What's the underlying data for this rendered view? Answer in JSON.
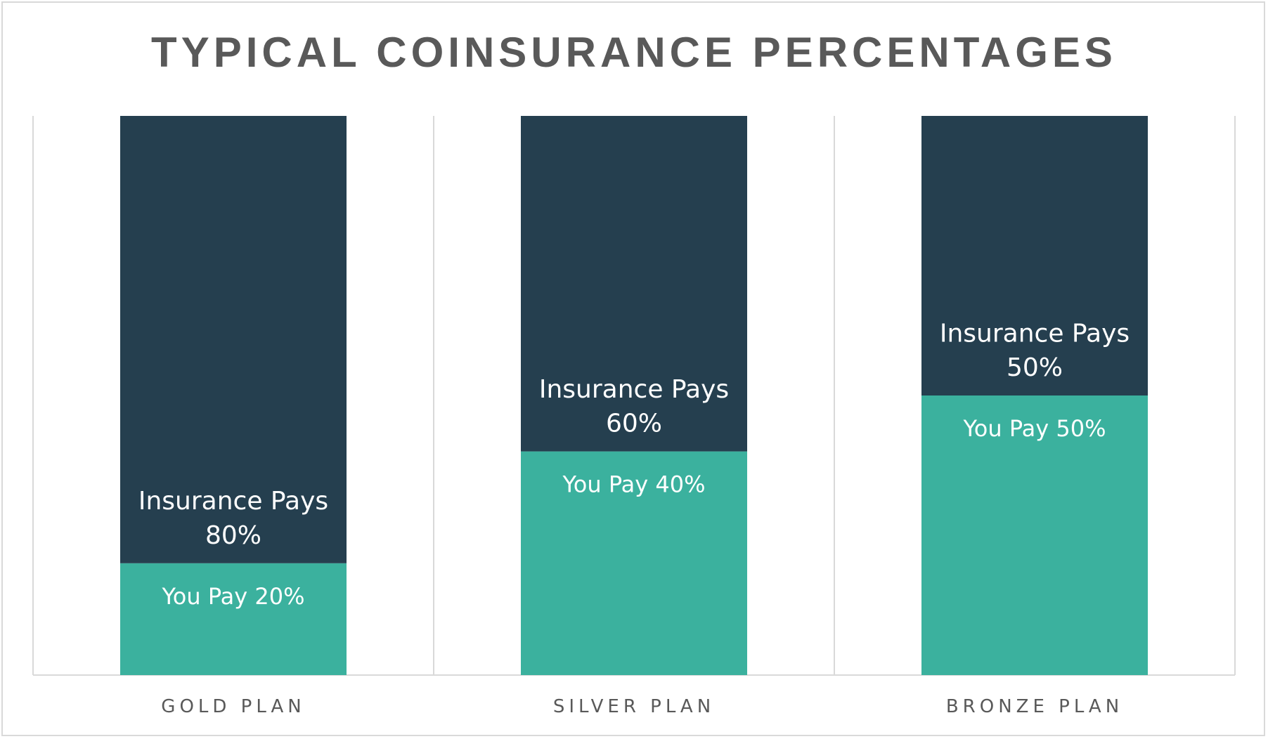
{
  "chart_data": {
    "type": "bar",
    "stacked": true,
    "title": "TYPICAL COINSURANCE PERCENTAGES",
    "categories": [
      "GOLD PLAN",
      "SILVER PLAN",
      "BRONZE PLAN"
    ],
    "ylim": [
      0,
      100
    ],
    "grid": false,
    "legend": "none",
    "series": [
      {
        "key": "you_pay",
        "values": [
          20,
          40,
          50
        ],
        "color": "#3bb19e",
        "labels": [
          "You Pay 20%",
          "You Pay 40%",
          "You Pay 50%"
        ]
      },
      {
        "key": "insurance_pays",
        "values": [
          80,
          60,
          50
        ],
        "color": "#253f4f",
        "labels": [
          [
            "Insurance Pays",
            "80%"
          ],
          [
            "Insurance Pays",
            "60%"
          ],
          [
            "Insurance Pays",
            "50%"
          ]
        ]
      }
    ]
  }
}
